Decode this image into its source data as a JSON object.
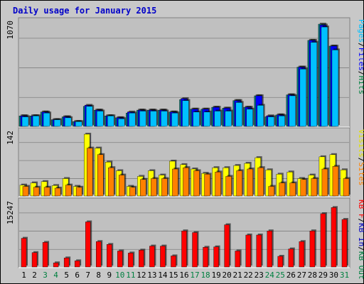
{
  "chart_data": {
    "type": "bar",
    "title": "Daily usage for January 2015",
    "categories": [
      "1",
      "2",
      "3",
      "4",
      "5",
      "6",
      "7",
      "8",
      "9",
      "10",
      "11",
      "12",
      "13",
      "14",
      "15",
      "16",
      "17",
      "18",
      "19",
      "20",
      "21",
      "22",
      "23",
      "24",
      "25",
      "26",
      "27",
      "28",
      "29",
      "30",
      "31"
    ],
    "weekend_days": [
      "3",
      "4",
      "10",
      "11",
      "17",
      "18",
      "24",
      "25",
      "31"
    ],
    "colors": {
      "pages": "#0080ff",
      "files": "#0000ff",
      "hits": "#008040",
      "visits": "#ffff00",
      "sites": "#ff8000",
      "kb_in": "#0000c0",
      "kb_out": "#008040",
      "kb_f": "#ff0000",
      "weekend_label": "#008040",
      "weekday_label": "#000000",
      "title": "#0000c8"
    },
    "panels": [
      {
        "id": "hits",
        "ymax_label": "1070",
        "ymax": 1070,
        "legend": [
          {
            "text": "Pages",
            "color": "#00c0ff"
          },
          {
            "text": "/",
            "color": "#000000"
          },
          {
            "text": "Files",
            "color": "#0000ff"
          },
          {
            "text": "/",
            "color": "#000000"
          },
          {
            "text": "Hits",
            "color": "#008040"
          }
        ],
        "series": [
          {
            "name": "Hits",
            "color": "#008080",
            "values": [
              110,
              110,
              150,
              70,
              100,
              50,
              210,
              170,
              110,
              90,
              140,
              170,
              170,
              170,
              150,
              280,
              180,
              180,
              200,
              190,
              270,
              200,
              320,
              100,
              120,
              330,
              620,
              900,
              1070,
              840,
              0
            ]
          },
          {
            "name": "Files",
            "color": "#0000ff",
            "values": [
              110,
              110,
              150,
              70,
              100,
              50,
              220,
              170,
              110,
              90,
              150,
              170,
              170,
              170,
              150,
              290,
              180,
              180,
              200,
              190,
              270,
              200,
              320,
              110,
              120,
              330,
              620,
              900,
              1060,
              840,
              0
            ]
          },
          {
            "name": "Pages",
            "color": "#00c0ff",
            "values": [
              100,
              110,
              140,
              70,
              90,
              50,
              210,
              160,
              110,
              80,
              140,
              160,
              160,
              160,
              140,
              270,
              150,
              150,
              160,
              160,
              250,
              180,
              220,
              100,
              110,
              320,
              600,
              880,
              1040,
              800,
              0
            ]
          }
        ]
      },
      {
        "id": "visits",
        "ymax_label": "142",
        "ymax": 142,
        "legend": [
          {
            "text": "Visits",
            "color": "#e0e000"
          },
          {
            "text": "/",
            "color": "#000000"
          },
          {
            "text": "Sites",
            "color": "#ff8000"
          }
        ],
        "series": [
          {
            "name": "Visits",
            "color": "#ffff00",
            "values": [
              25,
              30,
              33,
              24,
              40,
              22,
              142,
              110,
              78,
              58,
              22,
              45,
              58,
              48,
              80,
              72,
              62,
              52,
              65,
              65,
              70,
              75,
              88,
              60,
              50,
              55,
              40,
              48,
              90,
              95,
              60
            ]
          },
          {
            "name": "Sites",
            "color": "#ff8000",
            "values": [
              22,
              20,
              20,
              18,
              25,
              20,
              110,
              95,
              65,
              48,
              20,
              38,
              40,
              40,
              62,
              65,
              58,
              50,
              55,
              45,
              58,
              62,
              65,
              22,
              30,
              30,
              38,
              40,
              62,
              68,
              40
            ]
          }
        ]
      },
      {
        "id": "kbytes",
        "ymax_label": "15247",
        "ymax": 15247,
        "legend": [
          {
            "text": "KB F",
            "color": "#ff0000"
          },
          {
            "text": "/",
            "color": "#000000"
          },
          {
            "text": "KB In",
            "color": "#0000c0"
          },
          {
            "text": "/",
            "color": "#000000"
          },
          {
            "text": "KB Out",
            "color": "#008040"
          }
        ],
        "series": [
          {
            "name": "KB F",
            "color": "#ff0000",
            "values": [
              7000,
              3500,
              6000,
              1000,
              2200,
              1500,
              11000,
              6200,
              5500,
              3900,
              3400,
              4100,
              5100,
              5100,
              2700,
              8800,
              8400,
              4800,
              4900,
              10300,
              3900,
              7800,
              7800,
              8800,
              2600,
              4400,
              6200,
              8800,
              13000,
              14500,
              11600
            ]
          }
        ]
      }
    ]
  }
}
